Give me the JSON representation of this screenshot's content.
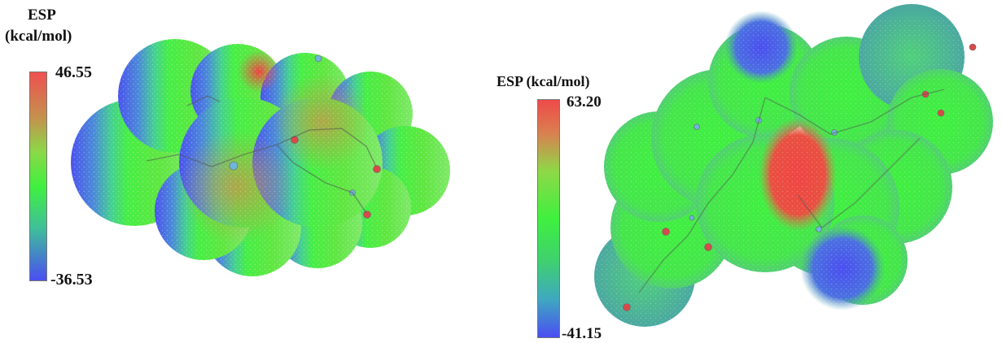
{
  "left_panel": {
    "legend_title_line1": "ESP",
    "legend_title_line2": "(kcal/mol)",
    "max_label": "46.55",
    "min_label": "-36.53",
    "max_value": 46.55,
    "min_value": -36.53
  },
  "right_panel": {
    "legend_title": "ESP (kcal/mol)",
    "max_label": "63.20",
    "min_label": "-41.15",
    "max_value": 63.2,
    "min_value": -41.15
  },
  "colorscale": {
    "low": "#4a4df0",
    "mid": "#39ef3a",
    "high": "#ef4a4a",
    "low_mid": "#3fa0c8",
    "mid_high": "#b0a040"
  }
}
